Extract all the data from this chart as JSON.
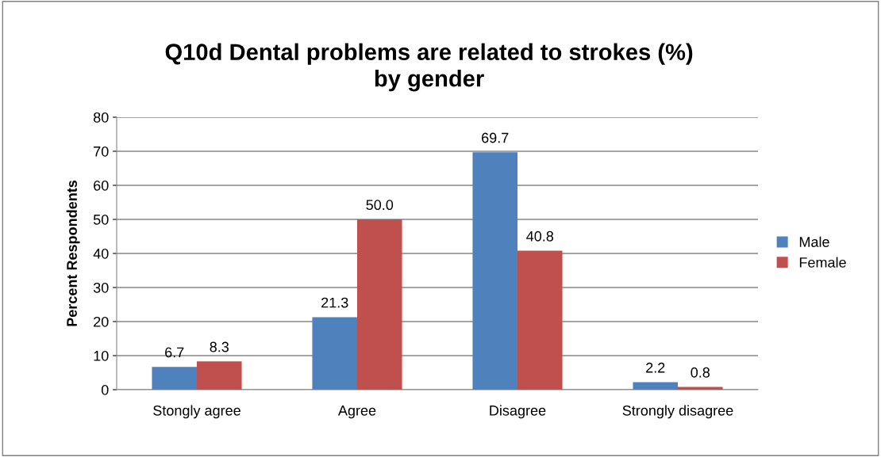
{
  "chart_data": {
    "type": "bar",
    "title": "Q10d Dental problems are related to strokes (%)\nby gender",
    "ylabel": "Percent Respondents",
    "categories": [
      "Stongly agree",
      "Agree",
      "Disagree",
      "Strongly disagree"
    ],
    "series": [
      {
        "name": "Male",
        "color": "#4f81bd",
        "values": [
          6.7,
          21.3,
          69.7,
          2.2
        ],
        "value_labels": [
          "6.7",
          "21.3",
          "69.7",
          "2.2"
        ]
      },
      {
        "name": "Female",
        "color": "#c0504d",
        "values": [
          8.3,
          50.0,
          40.8,
          0.8
        ],
        "value_labels": [
          "8.3",
          "50.0",
          "40.8",
          "0.8"
        ]
      }
    ],
    "ylim": [
      0,
      80
    ],
    "yticks": [
      0,
      10,
      20,
      30,
      40,
      50,
      60,
      70,
      80
    ],
    "grid": "y",
    "legend": "right"
  }
}
